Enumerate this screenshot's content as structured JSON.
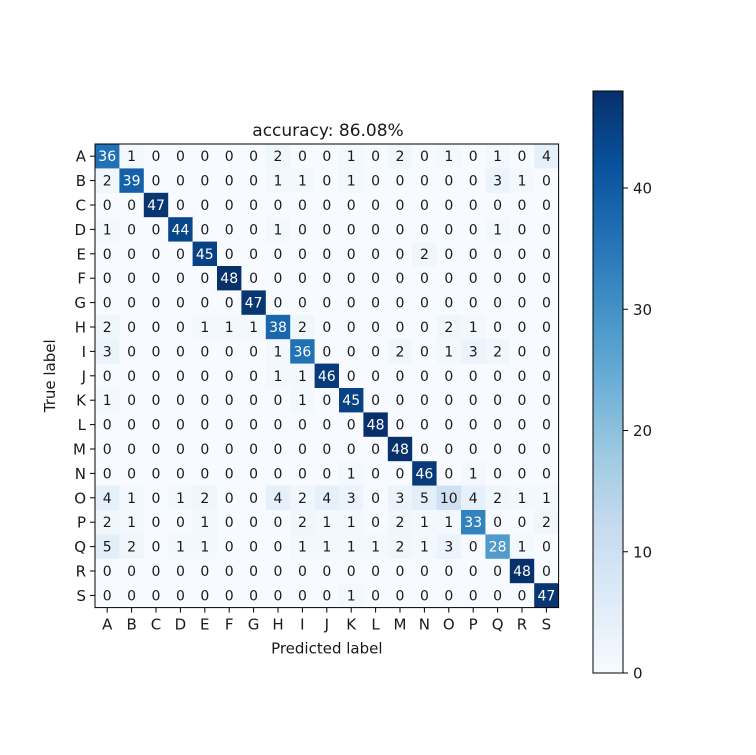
{
  "chart_data": {
    "type": "heatmap",
    "title": "accuracy: 86.08%",
    "xlabel": "Predicted label",
    "ylabel": "True label",
    "labels": [
      "A",
      "B",
      "C",
      "D",
      "E",
      "F",
      "G",
      "H",
      "I",
      "J",
      "K",
      "L",
      "M",
      "N",
      "O",
      "P",
      "Q",
      "R",
      "S"
    ],
    "matrix": [
      [
        36,
        1,
        0,
        0,
        0,
        0,
        0,
        2,
        0,
        0,
        1,
        0,
        2,
        0,
        1,
        0,
        1,
        0,
        4
      ],
      [
        2,
        39,
        0,
        0,
        0,
        0,
        0,
        1,
        1,
        0,
        1,
        0,
        0,
        0,
        0,
        0,
        3,
        1,
        0
      ],
      [
        0,
        0,
        47,
        0,
        0,
        0,
        0,
        0,
        0,
        0,
        0,
        0,
        0,
        0,
        0,
        0,
        0,
        0,
        0
      ],
      [
        1,
        0,
        0,
        44,
        0,
        0,
        0,
        1,
        0,
        0,
        0,
        0,
        0,
        0,
        0,
        0,
        1,
        0,
        0
      ],
      [
        0,
        0,
        0,
        0,
        45,
        0,
        0,
        0,
        0,
        0,
        0,
        0,
        0,
        2,
        0,
        0,
        0,
        0,
        0
      ],
      [
        0,
        0,
        0,
        0,
        0,
        48,
        0,
        0,
        0,
        0,
        0,
        0,
        0,
        0,
        0,
        0,
        0,
        0,
        0
      ],
      [
        0,
        0,
        0,
        0,
        0,
        0,
        47,
        0,
        0,
        0,
        0,
        0,
        0,
        0,
        0,
        0,
        0,
        0,
        0
      ],
      [
        2,
        0,
        0,
        0,
        1,
        1,
        1,
        38,
        2,
        0,
        0,
        0,
        0,
        0,
        2,
        1,
        0,
        0,
        0
      ],
      [
        3,
        0,
        0,
        0,
        0,
        0,
        0,
        1,
        36,
        0,
        0,
        0,
        2,
        0,
        1,
        3,
        2,
        0,
        0
      ],
      [
        0,
        0,
        0,
        0,
        0,
        0,
        0,
        1,
        1,
        46,
        0,
        0,
        0,
        0,
        0,
        0,
        0,
        0,
        0
      ],
      [
        1,
        0,
        0,
        0,
        0,
        0,
        0,
        0,
        1,
        0,
        45,
        0,
        0,
        0,
        0,
        0,
        0,
        0,
        0
      ],
      [
        0,
        0,
        0,
        0,
        0,
        0,
        0,
        0,
        0,
        0,
        0,
        48,
        0,
        0,
        0,
        0,
        0,
        0,
        0
      ],
      [
        0,
        0,
        0,
        0,
        0,
        0,
        0,
        0,
        0,
        0,
        0,
        0,
        48,
        0,
        0,
        0,
        0,
        0,
        0
      ],
      [
        0,
        0,
        0,
        0,
        0,
        0,
        0,
        0,
        0,
        0,
        1,
        0,
        0,
        46,
        0,
        1,
        0,
        0,
        0
      ],
      [
        4,
        1,
        0,
        1,
        2,
        0,
        0,
        4,
        2,
        4,
        3,
        0,
        3,
        5,
        10,
        4,
        2,
        1,
        1
      ],
      [
        2,
        1,
        0,
        0,
        1,
        0,
        0,
        0,
        2,
        1,
        1,
        0,
        2,
        1,
        1,
        33,
        0,
        0,
        2
      ],
      [
        5,
        2,
        0,
        1,
        1,
        0,
        0,
        0,
        1,
        1,
        1,
        1,
        2,
        1,
        3,
        0,
        28,
        1,
        0
      ],
      [
        0,
        0,
        0,
        0,
        0,
        0,
        0,
        0,
        0,
        0,
        0,
        0,
        0,
        0,
        0,
        0,
        0,
        48,
        0
      ],
      [
        0,
        0,
        0,
        0,
        0,
        0,
        0,
        0,
        0,
        0,
        1,
        0,
        0,
        0,
        0,
        0,
        0,
        0,
        47
      ]
    ],
    "colormap": "Blues",
    "colorbar": {
      "min": 0,
      "max": 48,
      "ticks": [
        0,
        10,
        20,
        30,
        40
      ]
    },
    "text_color_light": "#ffffff",
    "text_color_dark": "#1a1a1a"
  }
}
